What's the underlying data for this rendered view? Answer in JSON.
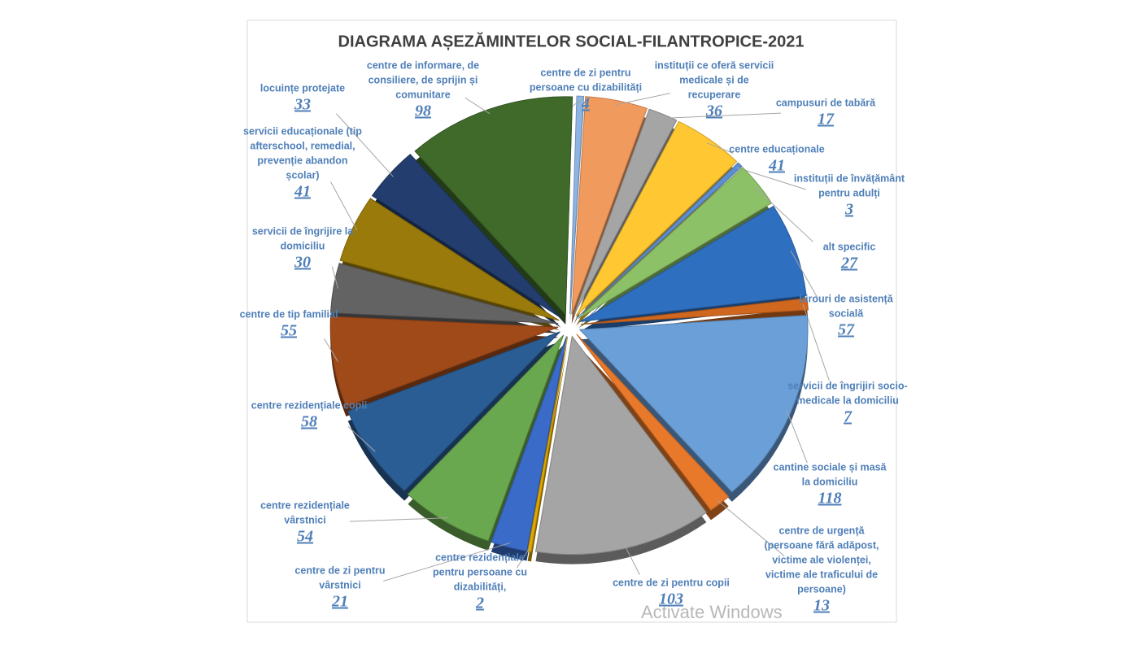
{
  "chart_data": {
    "type": "pie",
    "title": "DIAGRAMA AȘEZĂMINTELOR SOCIAL-FILANTROPICE-2021",
    "categories": [
      "centre de zi pentru persoane cu dizabilități",
      "instituții ce oferă servicii medicale și de recuperare",
      "campusuri de tabără",
      "centre educaționale",
      "instituții de învățământ pentru adulți",
      "alt specific",
      "birouri de asistență socială",
      "servicii de îngrijiri socio-medicale la domiciliu",
      "cantine sociale și masă la domiciliu",
      "centre de urgență (persoane fără adăpost, victime ale violenței, victime ale traficului de persoane)",
      "centre de zi pentru copii",
      "centre rezidențiale pentru persoane cu dizabilități,",
      "centre de zi pentru vârstnici",
      "centre rezidențiale vârstnici",
      "centre rezidențiale copii",
      "centre de tip familial",
      "servicii de îngrijire la domiciliu",
      "servicii educaționale (tip afterschool, remedial, prevenție abandon școlar)",
      "locuințe protejate",
      "centre de informare, de consiliere, de sprijin și comunitare"
    ],
    "values": [
      4,
      36,
      17,
      41,
      3,
      27,
      57,
      7,
      118,
      13,
      103,
      2,
      21,
      54,
      58,
      55,
      30,
      41,
      33,
      98
    ],
    "colors": [
      "#8db4e2",
      "#f09a5e",
      "#a5a5a5",
      "#ffc832",
      "#5b8fd4",
      "#8cc168",
      "#2f6fbf",
      "#d0671e",
      "#6a9fd8",
      "#e8782a",
      "#a5a5a5",
      "#e0a800",
      "#3a6bc8",
      "#6aa84f",
      "#2a5d94",
      "#a04a1a",
      "#636363",
      "#9a7a0a",
      "#223d6e",
      "#3f6a2a"
    ],
    "watermark": "Activate Windows"
  }
}
